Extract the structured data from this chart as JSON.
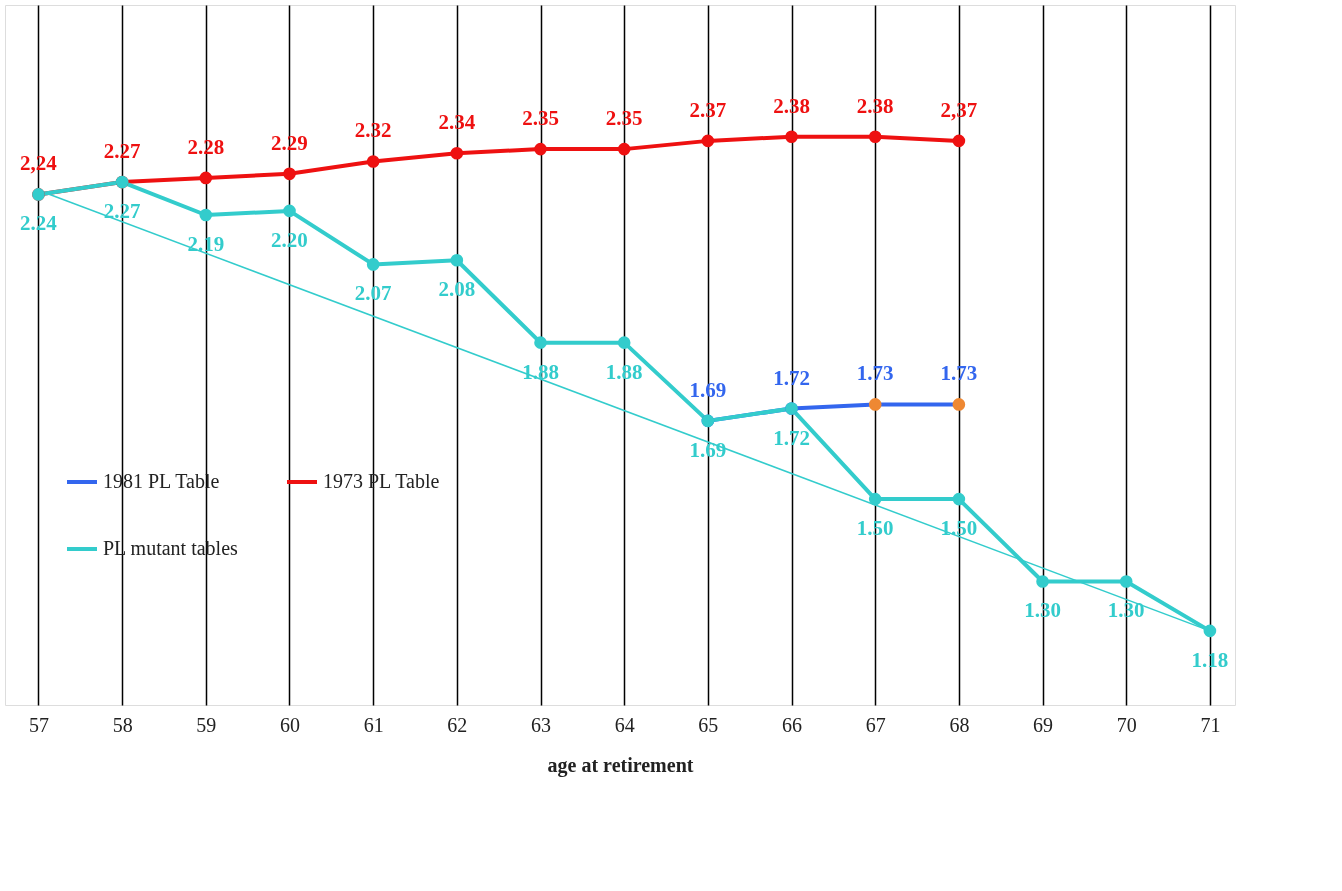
{
  "chart_data": {
    "type": "line",
    "xlabel": "age at retirement",
    "x": [
      57,
      58,
      59,
      60,
      61,
      62,
      63,
      64,
      65,
      66,
      67,
      68,
      69,
      70,
      71
    ],
    "xlim": [
      56.6,
      71.3
    ],
    "xticks": [
      57,
      58,
      59,
      60,
      61,
      62,
      63,
      64,
      65,
      66,
      67,
      68,
      69,
      70,
      71
    ],
    "ylim": [
      1.0,
      2.7
    ],
    "grid": "x",
    "tick_labels": "x",
    "legend": "left",
    "marker": "circle",
    "series": [
      {
        "name": "1981 PL Table",
        "color": "#3366ee",
        "x": [
          65,
          66,
          67,
          68
        ],
        "values": [
          1.69,
          1.72,
          1.73,
          1.73
        ],
        "colors": [
          "#3366ee",
          "#3366ee",
          "#ee8833",
          "#ee8833"
        ],
        "value_labels": [
          "1.69",
          "1.72",
          "1.73",
          "1.73"
        ]
      },
      {
        "name": "1973 PL Table",
        "color": "#ee1111",
        "x": [
          57,
          58,
          59,
          60,
          61,
          62,
          63,
          64,
          65,
          66,
          67,
          68
        ],
        "values": [
          2.24,
          2.27,
          2.28,
          2.29,
          2.32,
          2.34,
          2.35,
          2.35,
          2.37,
          2.38,
          2.38,
          2.37
        ],
        "value_labels": [
          "2,24",
          "2.27",
          "2.28",
          "2.29",
          "2.32",
          "2.34",
          "2.35",
          "2.35",
          "2.37",
          "2.38",
          "2.38",
          "2,37"
        ]
      },
      {
        "name": "PL mutant tables",
        "color": "#33cccc",
        "values": [
          2.24,
          2.27,
          2.19,
          2.2,
          2.07,
          2.08,
          1.88,
          1.88,
          1.69,
          1.72,
          1.5,
          1.5,
          1.3,
          1.3,
          1.18
        ],
        "value_labels": [
          "2.24",
          "2.27",
          "2.19",
          "2.20",
          "2.07",
          "2.08",
          "1.88",
          "1.88",
          "1.69",
          "1.72",
          "1.50",
          "1.50",
          "1.30",
          "1.30",
          "1.18"
        ]
      },
      {
        "type": "line",
        "color": "#33cccc",
        "x": [
          57,
          71
        ],
        "values": [
          2.25,
          1.18
        ],
        "marker": "none"
      }
    ]
  }
}
